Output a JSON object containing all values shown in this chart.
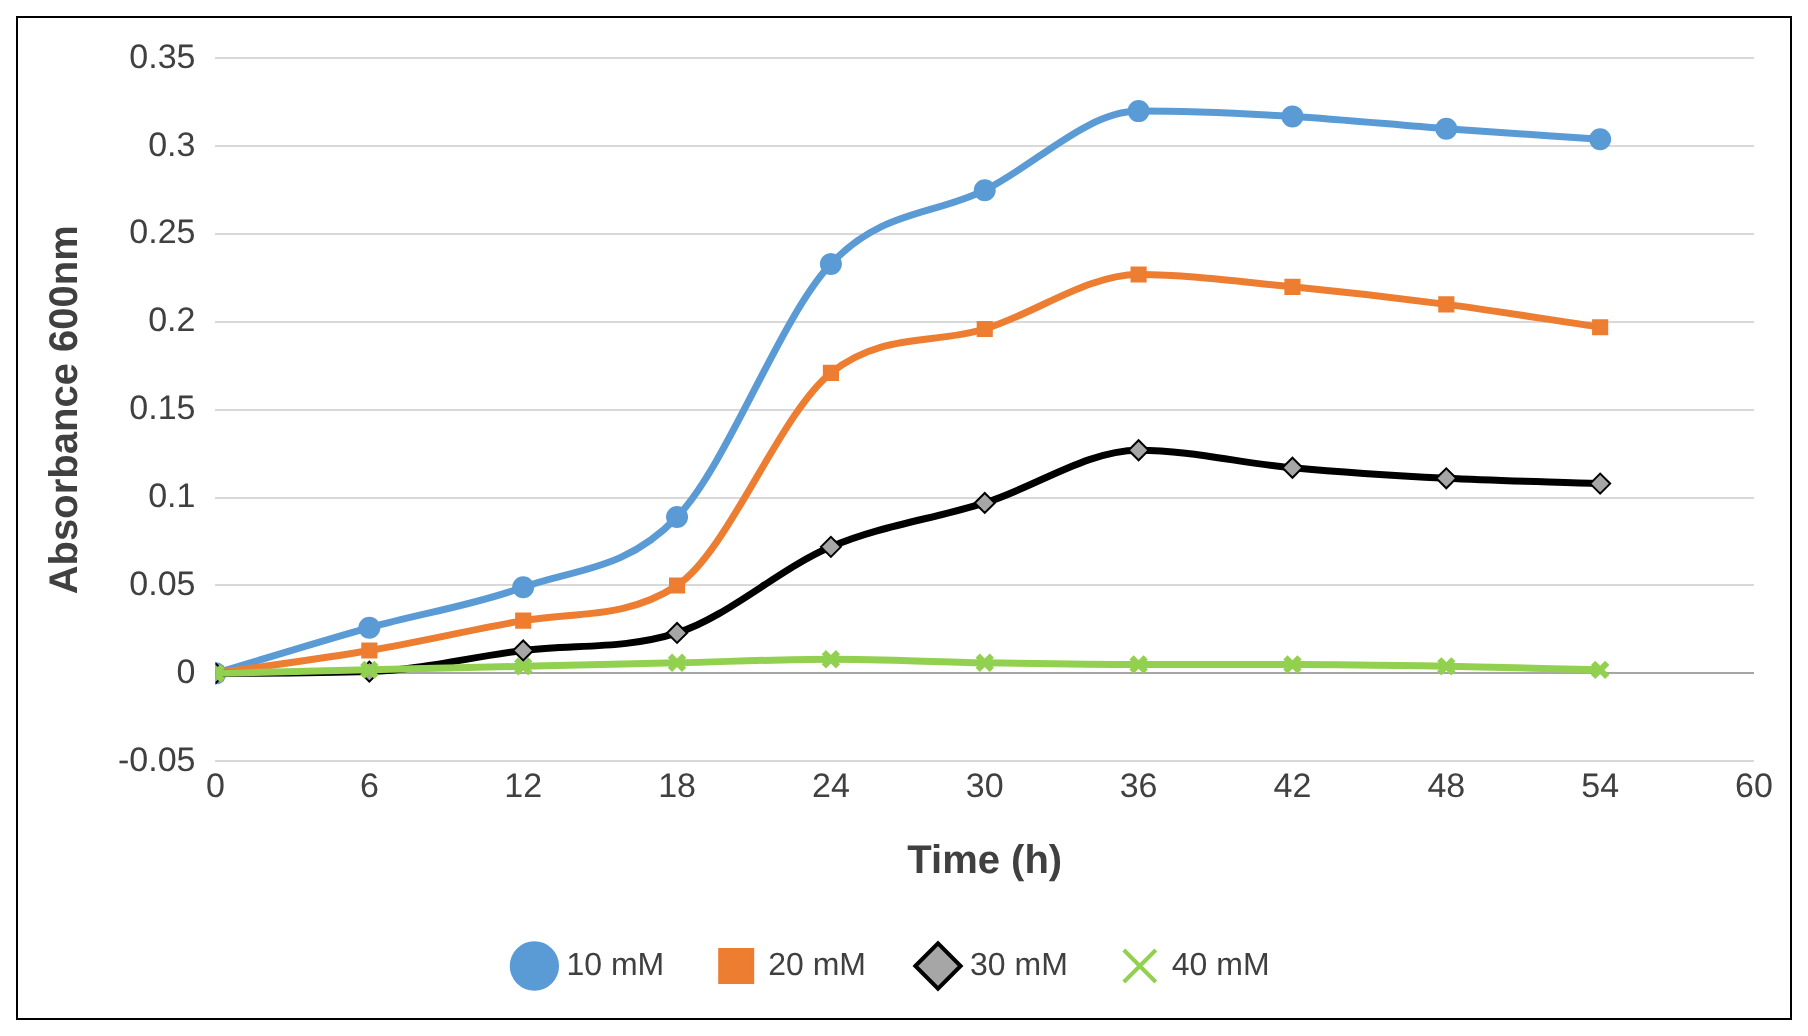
{
  "chart_data": {
    "type": "line",
    "xlabel": "Time (h)",
    "ylabel": "Absorbance 600nm",
    "x": [
      0,
      6,
      12,
      18,
      24,
      30,
      36,
      42,
      48,
      54
    ],
    "series": [
      {
        "name": "10 mM",
        "color": "#5b9bd5",
        "marker": "circle",
        "values": [
          0,
          0.026,
          0.049,
          0.089,
          0.233,
          0.275,
          0.32,
          0.317,
          0.31,
          0.304
        ]
      },
      {
        "name": "20 mM",
        "color": "#ed7d31",
        "marker": "square",
        "values": [
          0,
          0.013,
          0.03,
          0.05,
          0.171,
          0.196,
          0.227,
          0.22,
          0.21,
          0.197
        ]
      },
      {
        "name": "30 mM",
        "color": "#000000",
        "marker": "diamond",
        "values": [
          0,
          0.001,
          0.013,
          0.023,
          0.072,
          0.097,
          0.127,
          0.117,
          0.111,
          0.108
        ]
      },
      {
        "name": "40 mM",
        "color": "#92d050",
        "marker": "cross",
        "values": [
          0,
          0.002,
          0.004,
          0.006,
          0.008,
          0.006,
          0.005,
          0.005,
          0.004,
          0.002
        ]
      }
    ],
    "xlim": [
      0,
      60
    ],
    "xticks": [
      0,
      6,
      12,
      18,
      24,
      30,
      36,
      42,
      48,
      54,
      60
    ],
    "ylim": [
      -0.05,
      0.35
    ],
    "yticks": [
      -0.05,
      0,
      0.05,
      0.1,
      0.15,
      0.2,
      0.25,
      0.3,
      0.35
    ],
    "grid": "y",
    "legend": "bottom"
  }
}
